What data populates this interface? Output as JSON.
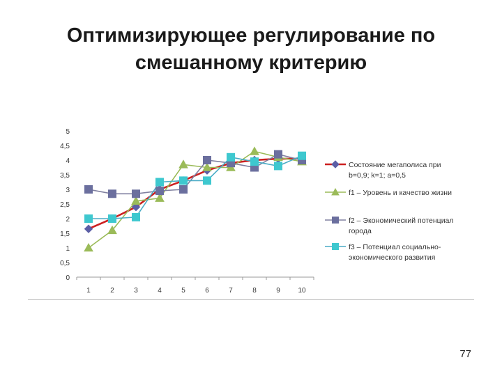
{
  "slide": {
    "title_line1": "Оптимизирующее регулирование по",
    "title_line2": "смешанному критерию",
    "page_number": "77"
  },
  "chart_data": {
    "type": "line",
    "title": "",
    "xlabel": "",
    "ylabel": "",
    "categories": [
      "1",
      "2",
      "3",
      "4",
      "5",
      "6",
      "7",
      "8",
      "9",
      "10"
    ],
    "yticks": [
      "0",
      "0,5",
      "1",
      "1,5",
      "2",
      "2,5",
      "3",
      "3,5",
      "4",
      "4,5",
      "5"
    ],
    "ylim": [
      0,
      5
    ],
    "grid": false,
    "legend": "right",
    "series": [
      {
        "name": "Состояние мегаполиса при b=0,9; k=1; a=0,5",
        "name_lines": [
          "Состояние мегаполиса при",
          "b=0,9; k=1; a=0,5"
        ],
        "values": [
          1.65,
          2.0,
          2.4,
          3.0,
          3.3,
          3.65,
          3.9,
          4.0,
          4.05,
          4.05
        ],
        "line_color": "#cc2020",
        "marker_color": "#5b5ea6",
        "marker": "diamond"
      },
      {
        "name": "f1 – Уровень и качество жизни",
        "name_lines": [
          "f1 – Уровень и качество жизни"
        ],
        "values": [
          1.0,
          1.6,
          2.6,
          2.7,
          3.85,
          3.75,
          3.75,
          4.3,
          4.1,
          3.95
        ],
        "line_color": "#9bbb59",
        "marker_color": "#9bbb59",
        "marker": "triangle"
      },
      {
        "name": "f2 – Экономический потенциал города",
        "name_lines": [
          "f2 – Экономический потенциал",
          "города"
        ],
        "values": [
          3.0,
          2.85,
          2.85,
          2.95,
          3.0,
          4.0,
          3.9,
          3.75,
          4.2,
          4.0
        ],
        "line_color": "#8080a0",
        "marker_color": "#6b6f9e",
        "marker": "square"
      },
      {
        "name": "f3 – Потенциал социально-экономического развития",
        "name_lines": [
          "f3 – Потенциал социально-",
          "экономического развития"
        ],
        "values": [
          2.0,
          2.0,
          2.05,
          3.25,
          3.3,
          3.3,
          4.1,
          3.95,
          3.8,
          4.15
        ],
        "line_color": "#4bacc6",
        "marker_color": "#3ec8cf",
        "marker": "square"
      }
    ]
  }
}
